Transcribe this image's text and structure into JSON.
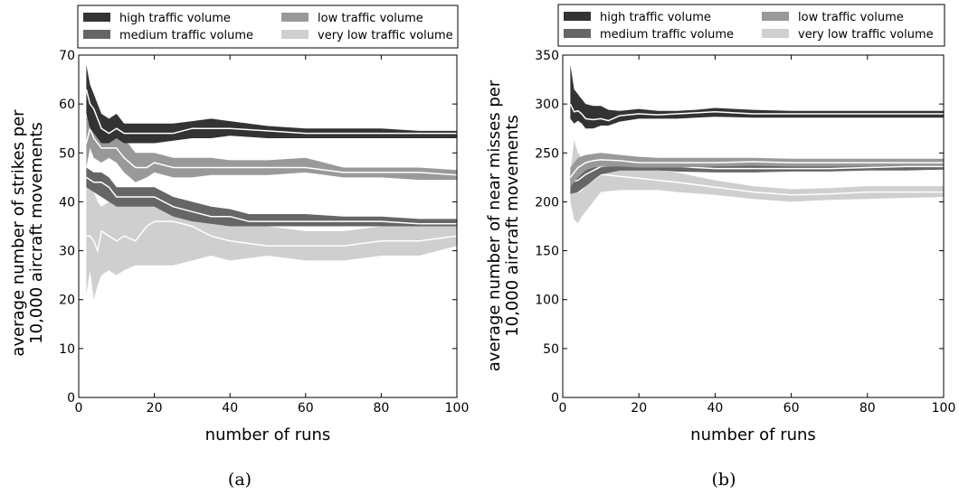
{
  "chart_data": [
    {
      "panel_label": "a",
      "type": "area",
      "xlabel": "number of runs",
      "ylabel": [
        "average number of strikes per",
        "10,000 aircraft movements"
      ],
      "xlim": [
        0,
        100
      ],
      "ylim": [
        0,
        70
      ],
      "xticks": [
        0,
        20,
        40,
        60,
        80,
        100
      ],
      "yticks": [
        0,
        10,
        20,
        30,
        40,
        50,
        60,
        70
      ],
      "grid": false,
      "legend_position": "top",
      "series": [
        {
          "name": "very low traffic volume",
          "color": "#cfcfcf",
          "x": [
            2,
            3,
            4,
            5,
            6,
            8,
            10,
            12,
            15,
            18,
            20,
            25,
            30,
            35,
            40,
            50,
            60,
            70,
            80,
            90,
            100
          ],
          "mean": [
            33,
            33,
            32,
            30,
            34,
            33,
            32,
            33,
            32,
            35,
            36,
            36,
            35,
            33,
            32,
            31,
            31,
            31,
            32,
            32,
            33
          ],
          "lower": [
            21,
            26,
            20,
            23,
            25,
            26,
            25,
            26,
            27,
            27,
            27,
            27,
            28,
            29,
            28,
            29,
            28,
            28,
            29,
            29,
            31
          ],
          "upper": [
            45,
            44,
            42,
            40,
            39,
            40,
            39,
            41,
            39,
            43,
            42,
            40,
            38,
            38,
            37,
            35,
            34,
            34,
            35,
            35,
            35
          ]
        },
        {
          "name": "medium traffic volume",
          "color": "#666666",
          "x": [
            2,
            4,
            6,
            8,
            10,
            12,
            15,
            18,
            20,
            25,
            30,
            35,
            40,
            45,
            50,
            60,
            70,
            80,
            90,
            100
          ],
          "mean": [
            45,
            44,
            44,
            43,
            41,
            41,
            41,
            41,
            41,
            39,
            38,
            37,
            37,
            36,
            36,
            36,
            36,
            36,
            35.5,
            35.5
          ],
          "lower": [
            43,
            42,
            41,
            40,
            39,
            39,
            39,
            39,
            39,
            37,
            36,
            35.5,
            35,
            35,
            35,
            35,
            35,
            35,
            35,
            35
          ],
          "upper": [
            47,
            46,
            46,
            45,
            43,
            43,
            43,
            43,
            43,
            41,
            40,
            39,
            38.5,
            37.5,
            37.5,
            37.5,
            37,
            37,
            36.5,
            36.5
          ]
        },
        {
          "name": "low traffic volume",
          "color": "#999999",
          "x": [
            2,
            3,
            4,
            6,
            8,
            10,
            12,
            15,
            18,
            20,
            25,
            30,
            35,
            40,
            50,
            60,
            70,
            80,
            90,
            100
          ],
          "mean": [
            52,
            55,
            53,
            51,
            51,
            51,
            49,
            47,
            47,
            48,
            47,
            47,
            47,
            47,
            47,
            47,
            46,
            46,
            46,
            45.5
          ],
          "lower": [
            47,
            51,
            49,
            48,
            49,
            48,
            46,
            44,
            45,
            46,
            45,
            45,
            45.5,
            45.5,
            45.5,
            46,
            45,
            45,
            44.5,
            44.5
          ],
          "upper": [
            57,
            59,
            57,
            55,
            55,
            54,
            53,
            50,
            50,
            50,
            49,
            49,
            49,
            48.5,
            48.5,
            49,
            47,
            47,
            47,
            46.5
          ]
        },
        {
          "name": "high traffic volume",
          "color": "#333333",
          "x": [
            2,
            3,
            4,
            5,
            6,
            8,
            10,
            12,
            15,
            18,
            20,
            25,
            30,
            35,
            40,
            50,
            60,
            70,
            80,
            90,
            100
          ],
          "mean": [
            63,
            60,
            59,
            57,
            55,
            54,
            55,
            54,
            54,
            54,
            54,
            54,
            55,
            55,
            55,
            54.5,
            54,
            54,
            54,
            54,
            54
          ],
          "lower": [
            58,
            55,
            54,
            53,
            52,
            52,
            53,
            52,
            52,
            52,
            52,
            52.5,
            53,
            53,
            53.5,
            53,
            53,
            53,
            53,
            53,
            53
          ],
          "upper": [
            68,
            64,
            62,
            60,
            58,
            57,
            58,
            56,
            56,
            56,
            56,
            56,
            56.5,
            57,
            56.5,
            55.5,
            55,
            55,
            55,
            54.5,
            54.5
          ]
        }
      ]
    },
    {
      "panel_label": "b",
      "type": "area",
      "xlabel": "number of runs",
      "ylabel": [
        "average number of near misses per",
        "10,000 aircraft movements"
      ],
      "xlim": [
        0,
        100
      ],
      "ylim": [
        0,
        350
      ],
      "xticks": [
        0,
        20,
        40,
        60,
        80,
        100
      ],
      "yticks": [
        0,
        50,
        100,
        150,
        200,
        250,
        300,
        350
      ],
      "grid": false,
      "legend_position": "top",
      "series": [
        {
          "name": "very low traffic volume",
          "color": "#cfcfcf",
          "x": [
            2,
            3,
            4,
            5,
            6,
            8,
            10,
            15,
            20,
            25,
            30,
            40,
            50,
            60,
            70,
            80,
            90,
            100
          ],
          "mean": [
            215,
            220,
            210,
            212,
            218,
            222,
            228,
            226,
            224,
            222,
            220,
            215,
            210,
            207,
            208,
            210,
            210,
            210
          ],
          "lower": [
            200,
            182,
            178,
            185,
            190,
            200,
            210,
            212,
            212,
            212,
            210,
            207,
            203,
            200,
            202,
            203,
            204,
            205
          ],
          "upper": [
            230,
            263,
            250,
            245,
            245,
            245,
            245,
            238,
            236,
            232,
            230,
            222,
            216,
            213,
            214,
            216,
            216,
            216
          ]
        },
        {
          "name": "medium traffic volume",
          "color": "#666666",
          "x": [
            2,
            4,
            6,
            8,
            10,
            15,
            20,
            25,
            30,
            40,
            50,
            60,
            70,
            80,
            90,
            100
          ],
          "mean": [
            220,
            222,
            228,
            232,
            236,
            238,
            238,
            236,
            236,
            234,
            234,
            234,
            234,
            235,
            236,
            236
          ],
          "lower": [
            208,
            210,
            216,
            222,
            228,
            232,
            232,
            232,
            231,
            230,
            230,
            231,
            231,
            232,
            232,
            233
          ],
          "upper": [
            230,
            234,
            240,
            242,
            244,
            244,
            244,
            241,
            241,
            238,
            238,
            238,
            238,
            239,
            239,
            239
          ]
        },
        {
          "name": "low traffic volume",
          "color": "#999999",
          "x": [
            2,
            4,
            6,
            8,
            10,
            15,
            20,
            25,
            30,
            40,
            50,
            60,
            70,
            80,
            90,
            100
          ],
          "mean": [
            225,
            235,
            240,
            242,
            243,
            242,
            240,
            240,
            240,
            240,
            241,
            240,
            240,
            240,
            240,
            240
          ],
          "lower": [
            215,
            225,
            232,
            235,
            236,
            236,
            235,
            235,
            235,
            236,
            237,
            236,
            236,
            236,
            237,
            237
          ],
          "upper": [
            235,
            245,
            248,
            249,
            250,
            248,
            246,
            245,
            245,
            245,
            245,
            244,
            244,
            244,
            244,
            244
          ]
        },
        {
          "name": "high traffic volume",
          "color": "#333333",
          "x": [
            2,
            3,
            4,
            5,
            6,
            8,
            10,
            12,
            15,
            20,
            25,
            30,
            35,
            40,
            50,
            60,
            70,
            80,
            90,
            100
          ],
          "mean": [
            300,
            292,
            293,
            290,
            285,
            284,
            285,
            283,
            288,
            290,
            289,
            290,
            291,
            292,
            290,
            290,
            290,
            290,
            290,
            290
          ],
          "lower": [
            285,
            280,
            283,
            280,
            275,
            275,
            278,
            278,
            282,
            285,
            285,
            285,
            286,
            287,
            286,
            286,
            286,
            286,
            286,
            286
          ],
          "upper": [
            340,
            315,
            310,
            305,
            300,
            298,
            298,
            294,
            293,
            295,
            293,
            293,
            294,
            296,
            294,
            293,
            293,
            293,
            293,
            293
          ]
        }
      ]
    }
  ],
  "legend_order": [
    "high traffic volume",
    "low traffic volume",
    "medium traffic volume",
    "very low traffic volume"
  ],
  "captions": [
    "(a)",
    "(b)"
  ]
}
